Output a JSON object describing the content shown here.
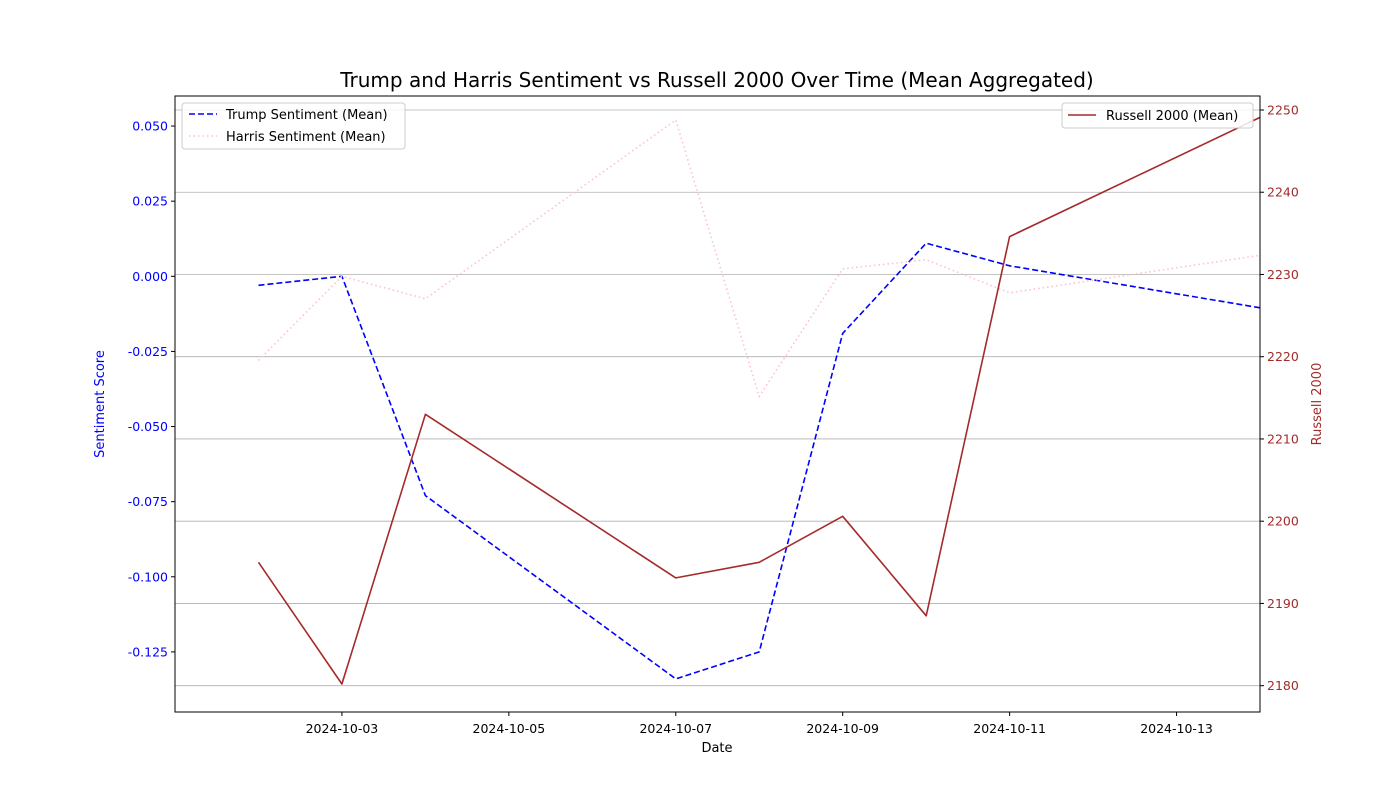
{
  "chart_data": {
    "type": "line",
    "title": "Trump and Harris Sentiment vs Russell 2000 Over Time (Mean Aggregated)",
    "xlabel": "Date",
    "ylabel": "Sentiment Score",
    "y2label": "Russell 2000",
    "x_ticks": [
      "2024-10-03",
      "2024-10-05",
      "2024-10-07",
      "2024-10-09",
      "2024-10-11",
      "2024-10-13"
    ],
    "xlim": [
      "2024-10-01",
      "2024-10-14"
    ],
    "ylim": [
      -0.145,
      0.06
    ],
    "y_ticks": [
      "0.050",
      "0.025",
      "0.000",
      "-0.025",
      "-0.050",
      "-0.075",
      "-0.100",
      "-0.125"
    ],
    "y2lim": [
      2176.8,
      2251.7
    ],
    "y2_ticks": [
      "2250",
      "2240",
      "2230",
      "2220",
      "2210",
      "2200",
      "2190",
      "2180"
    ],
    "grid": "horizontal lines on right axis",
    "series": [
      {
        "name": "Trump Sentiment (Mean)",
        "axis": "left",
        "color": "#0000ff",
        "style": "dashed",
        "x": [
          "2024-10-02",
          "2024-10-03",
          "2024-10-04",
          "2024-10-07",
          "2024-10-08",
          "2024-10-09",
          "2024-10-10",
          "2024-10-11",
          "2024-10-14"
        ],
        "values": [
          -0.003,
          0.0,
          -0.073,
          -0.134,
          -0.125,
          -0.019,
          0.011,
          0.0035,
          -0.0105
        ]
      },
      {
        "name": "Harris Sentiment (Mean)",
        "axis": "left",
        "color": "#ffc0cb",
        "style": "dotted",
        "x": [
          "2024-10-02",
          "2024-10-03",
          "2024-10-04",
          "2024-10-07",
          "2024-10-08",
          "2024-10-09",
          "2024-10-10",
          "2024-10-11",
          "2024-10-14"
        ],
        "values": [
          -0.028,
          0.0,
          -0.0075,
          0.052,
          -0.04,
          0.0025,
          0.0055,
          -0.0055,
          0.007
        ]
      },
      {
        "name": "Russell 2000 (Mean)",
        "axis": "right",
        "color": "#a52a2a",
        "style": "solid",
        "x": [
          "2024-10-02",
          "2024-10-03",
          "2024-10-04",
          "2024-10-07",
          "2024-10-08",
          "2024-10-09",
          "2024-10-10",
          "2024-10-11",
          "2024-10-14"
        ],
        "values": [
          2195.0,
          2180.2,
          2213.0,
          2193.1,
          2195.0,
          2200.6,
          2188.5,
          2234.6,
          2249.1
        ]
      }
    ],
    "legends": [
      {
        "placement": "upper-left",
        "entries": [
          "Trump Sentiment (Mean)",
          "Harris Sentiment (Mean)"
        ]
      },
      {
        "placement": "upper-right",
        "entries": [
          "Russell 2000 (Mean)"
        ]
      }
    ]
  },
  "colors": {
    "left_axis": "#0000ff",
    "right_axis": "#a52a2a",
    "grid": "#b0b0b0",
    "axes": "#000000"
  }
}
